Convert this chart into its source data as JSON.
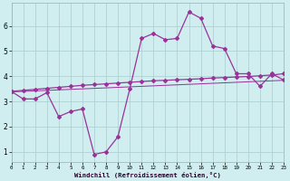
{
  "x": [
    0,
    1,
    2,
    3,
    4,
    5,
    6,
    7,
    8,
    9,
    10,
    11,
    12,
    13,
    14,
    15,
    16,
    17,
    18,
    19,
    20,
    21,
    22,
    23
  ],
  "line_jagged": [
    3.4,
    3.1,
    3.1,
    3.35,
    2.4,
    2.6,
    2.7,
    0.9,
    1.0,
    1.6,
    3.5,
    5.5,
    5.7,
    5.45,
    5.5,
    6.55,
    6.3,
    5.2,
    5.1,
    4.1,
    4.1,
    3.6,
    4.1,
    3.85
  ],
  "line_upper": [
    3.4,
    3.44,
    3.48,
    3.52,
    3.56,
    3.6,
    3.64,
    3.67,
    3.7,
    3.73,
    3.76,
    3.79,
    3.82,
    3.84,
    3.86,
    3.88,
    3.9,
    3.93,
    3.95,
    3.97,
    3.99,
    4.02,
    4.05,
    4.1
  ],
  "line_lower": [
    3.38,
    3.4,
    3.42,
    3.44,
    3.46,
    3.48,
    3.5,
    3.52,
    3.54,
    3.56,
    3.58,
    3.6,
    3.62,
    3.64,
    3.66,
    3.68,
    3.7,
    3.72,
    3.74,
    3.76,
    3.78,
    3.8,
    3.82,
    3.84
  ],
  "line_color": "#993399",
  "background_color": "#d0eef0",
  "grid_color": "#aacccc",
  "xlabel": "Windchill (Refroidissement éolien,°C)",
  "xlim": [
    0,
    23
  ],
  "ylim": [
    0.6,
    6.9
  ],
  "yticks": [
    1,
    2,
    3,
    4,
    5,
    6
  ],
  "xticks": [
    0,
    1,
    2,
    3,
    4,
    5,
    6,
    7,
    8,
    9,
    10,
    11,
    12,
    13,
    14,
    15,
    16,
    17,
    18,
    19,
    20,
    21,
    22,
    23
  ],
  "marker": "D",
  "markersize": 2.0,
  "linewidth": 0.9
}
